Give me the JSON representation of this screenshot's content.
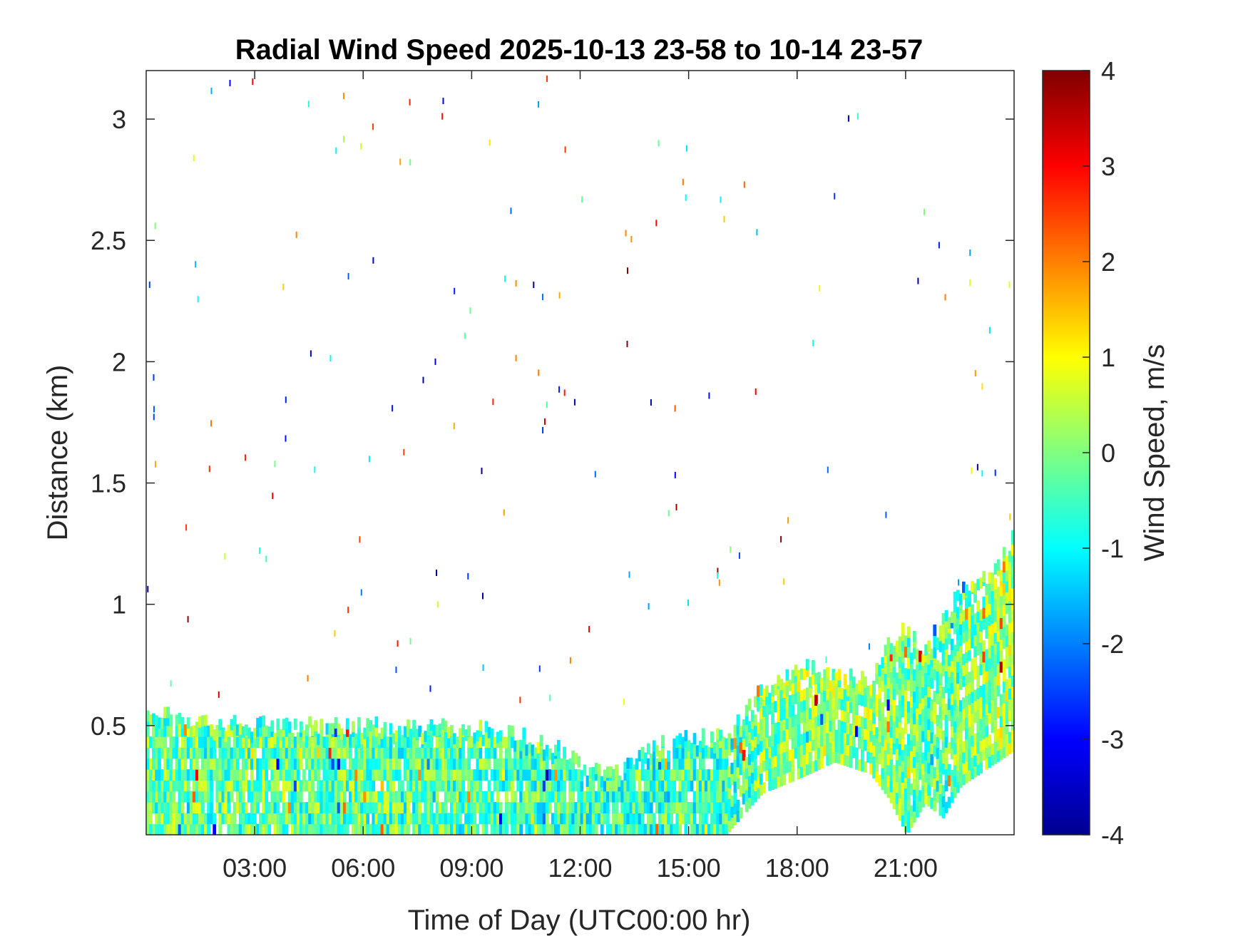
{
  "chart_data": {
    "type": "heatmap",
    "title": "Radial Wind Speed 2025-10-13 23-58 to 10-14 23-57",
    "xlabel": "Time of Day (UTC00:00 hr)",
    "ylabel": "Distance (km)",
    "colorbar_label": "Wind Speed, m/s",
    "colormap": "jet",
    "xlim": [
      0,
      24
    ],
    "ylim": [
      0.05,
      3.2
    ],
    "clim": [
      -4,
      4
    ],
    "x_ticks": [
      {
        "value": 3,
        "label": "03:00"
      },
      {
        "value": 6,
        "label": "06:00"
      },
      {
        "value": 9,
        "label": "09:00"
      },
      {
        "value": 12,
        "label": "12:00"
      },
      {
        "value": 15,
        "label": "15:00"
      },
      {
        "value": 18,
        "label": "18:00"
      },
      {
        "value": 21,
        "label": "21:00"
      }
    ],
    "y_ticks": [
      {
        "value": 0.5,
        "label": "0.5"
      },
      {
        "value": 1,
        "label": "1"
      },
      {
        "value": 1.5,
        "label": "1.5"
      },
      {
        "value": 2,
        "label": "2"
      },
      {
        "value": 2.5,
        "label": "2.5"
      },
      {
        "value": 3,
        "label": "3"
      }
    ],
    "colorbar_ticks": [
      {
        "value": 4,
        "label": "4"
      },
      {
        "value": 3,
        "label": "3"
      },
      {
        "value": 2,
        "label": "2"
      },
      {
        "value": 1,
        "label": "1"
      },
      {
        "value": 0,
        "label": "0"
      },
      {
        "value": -1,
        "label": "-1"
      },
      {
        "value": -2,
        "label": "-2"
      },
      {
        "value": -3,
        "label": "-3"
      },
      {
        "value": -4,
        "label": "-4"
      }
    ],
    "data_top_profile": [
      {
        "x": 0.0,
        "y": 0.55
      },
      {
        "x": 2.0,
        "y": 0.52
      },
      {
        "x": 4.0,
        "y": 0.5
      },
      {
        "x": 6.0,
        "y": 0.5
      },
      {
        "x": 8.0,
        "y": 0.5
      },
      {
        "x": 10.0,
        "y": 0.48
      },
      {
        "x": 11.2,
        "y": 0.42
      },
      {
        "x": 12.0,
        "y": 0.33
      },
      {
        "x": 13.0,
        "y": 0.33
      },
      {
        "x": 14.0,
        "y": 0.42
      },
      {
        "x": 15.0,
        "y": 0.45
      },
      {
        "x": 16.0,
        "y": 0.45
      },
      {
        "x": 17.0,
        "y": 0.65
      },
      {
        "x": 18.0,
        "y": 0.75
      },
      {
        "x": 19.0,
        "y": 0.72
      },
      {
        "x": 20.0,
        "y": 0.68
      },
      {
        "x": 20.5,
        "y": 0.85
      },
      {
        "x": 21.0,
        "y": 0.9
      },
      {
        "x": 21.5,
        "y": 0.8
      },
      {
        "x": 22.0,
        "y": 0.95
      },
      {
        "x": 22.5,
        "y": 1.05
      },
      {
        "x": 23.0,
        "y": 1.1
      },
      {
        "x": 23.5,
        "y": 1.15
      },
      {
        "x": 24.0,
        "y": 1.3
      }
    ],
    "data_bottom_profile": [
      {
        "x": 0.0,
        "y": 0.05
      },
      {
        "x": 16.0,
        "y": 0.05
      },
      {
        "x": 17.0,
        "y": 0.22
      },
      {
        "x": 18.0,
        "y": 0.28
      },
      {
        "x": 19.0,
        "y": 0.35
      },
      {
        "x": 20.0,
        "y": 0.3
      },
      {
        "x": 20.5,
        "y": 0.2
      },
      {
        "x": 21.0,
        "y": 0.05
      },
      {
        "x": 21.5,
        "y": 0.18
      },
      {
        "x": 22.0,
        "y": 0.12
      },
      {
        "x": 22.5,
        "y": 0.25
      },
      {
        "x": 23.0,
        "y": 0.3
      },
      {
        "x": 23.5,
        "y": 0.35
      },
      {
        "x": 24.0,
        "y": 0.4
      }
    ],
    "mean_speed_profile": [
      {
        "x": 0,
        "v": -0.2
      },
      {
        "x": 6,
        "v": -0.3
      },
      {
        "x": 12,
        "v": -0.5
      },
      {
        "x": 16,
        "v": -0.5
      },
      {
        "x": 18,
        "v": 0.2
      },
      {
        "x": 20,
        "v": 0.1
      },
      {
        "x": 22,
        "v": -0.3
      },
      {
        "x": 24,
        "v": 0.4
      }
    ],
    "grid": false,
    "legend": "colorbar-right"
  }
}
